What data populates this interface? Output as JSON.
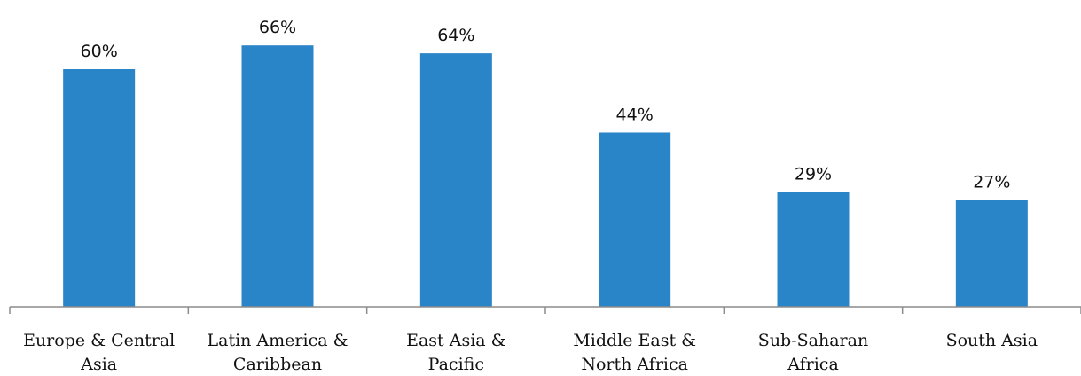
{
  "chart_data": {
    "type": "bar",
    "categories": [
      [
        "Europe & Central",
        "Asia"
      ],
      [
        "Latin America &",
        "Caribbean"
      ],
      [
        "East Asia &",
        "Pacific"
      ],
      [
        "Middle East &",
        "North Africa"
      ],
      [
        "Sub-Saharan",
        "Africa"
      ],
      [
        "South Asia"
      ]
    ],
    "values": [
      60,
      66,
      64,
      44,
      29,
      27
    ],
    "value_labels": [
      "60%",
      "66%",
      "64%",
      "44%",
      "29%",
      "27%"
    ],
    "value_unit": "%",
    "ylim": [
      0,
      70
    ],
    "grid": false,
    "legend": "none",
    "colors": {
      "bar": "#2a84c8"
    }
  }
}
